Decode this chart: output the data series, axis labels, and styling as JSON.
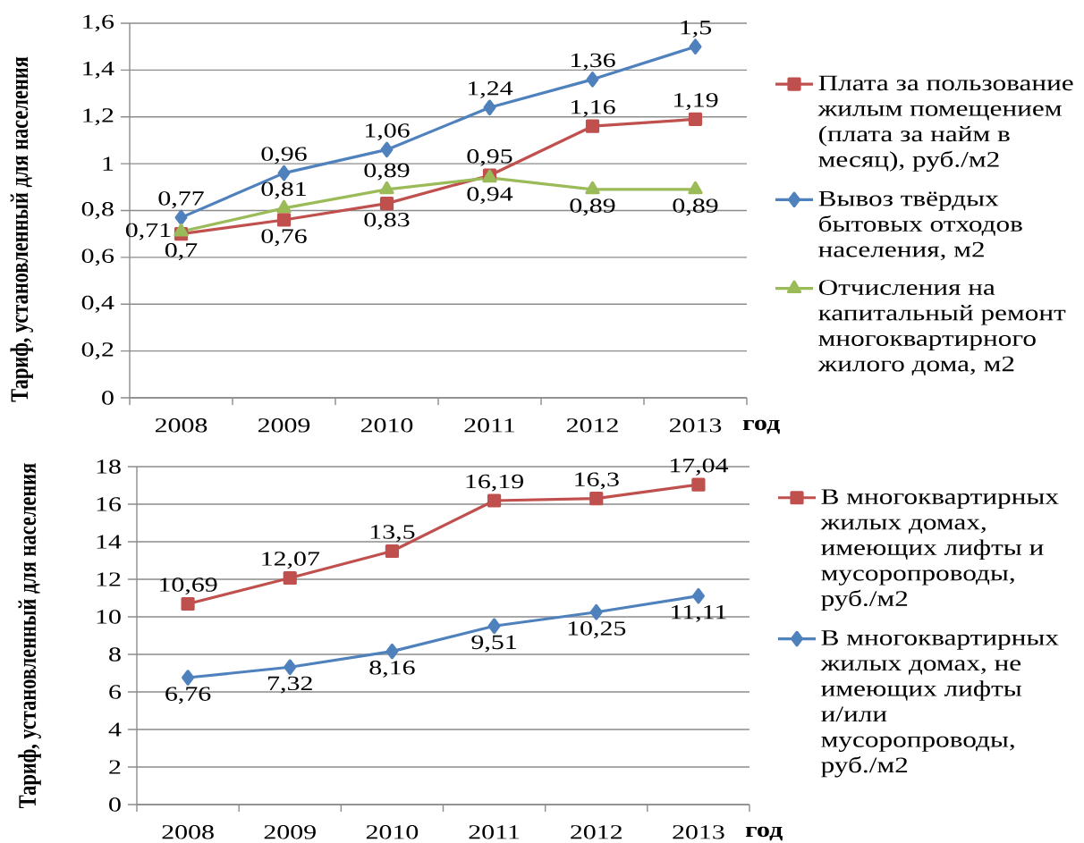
{
  "chart_data": [
    {
      "type": "line",
      "categories": [
        "2008",
        "2009",
        "2010",
        "2011",
        "2012",
        "2013"
      ],
      "xlabel": "год",
      "ylabel": "Тариф, установленный для населения",
      "ylim": [
        0,
        1.6
      ],
      "yticks": [
        0,
        {
          "value": 0.2,
          "label": "0,2"
        },
        {
          "value": 0.4,
          "label": "0,4"
        },
        {
          "value": 0.6,
          "label": "0,6"
        },
        {
          "value": 0.8,
          "label": "0,8"
        },
        1,
        {
          "value": 1.2,
          "label": "1,2"
        },
        {
          "value": 1.4,
          "label": "1,4"
        },
        {
          "value": 1.6,
          "label": "1,6"
        }
      ],
      "grid": "y",
      "legend": "right",
      "series": [
        {
          "name": "Плата за пользование жилым помещением (плата за найм в месяц), руб./м2",
          "color": "#c0504d",
          "marker": "square",
          "values": [
            0.7,
            0.76,
            0.83,
            0.95,
            1.16,
            1.19
          ],
          "value_labels": [
            "0,7",
            "0,76",
            "0,83",
            "0,95",
            "1,16",
            "1,19"
          ]
        },
        {
          "name": "Вывоз твёрдых бытовых отходов населения, м2",
          "color": "#4f81bd",
          "marker": "diamond",
          "values": [
            0.77,
            0.96,
            1.06,
            1.24,
            1.36,
            1.5
          ],
          "value_labels": [
            "0,77",
            "0,96",
            "1,06",
            "1,24",
            "1,36",
            "1,5"
          ]
        },
        {
          "name": "Отчисления на капитальный ремонт многоквартирного жилого дома, м2",
          "color": "#9bbb59",
          "marker": "triangle",
          "values": [
            0.71,
            0.81,
            0.89,
            0.94,
            0.89,
            0.89
          ],
          "value_labels": [
            "0,71",
            "0,81",
            "0,89",
            "0,94",
            "0,89",
            "0,89"
          ]
        }
      ]
    },
    {
      "type": "line",
      "categories": [
        "2008",
        "2009",
        "2010",
        "2011",
        "2012",
        "2013"
      ],
      "xlabel": "год",
      "ylabel": "Тариф, установленный для населения",
      "ylim": [
        0,
        18
      ],
      "yticks": [
        0,
        2,
        4,
        6,
        8,
        10,
        12,
        14,
        16,
        18
      ],
      "grid": "y",
      "legend": "right",
      "series": [
        {
          "name": "В многоквартирных жилых домах, имеющих лифты и мусоропроводы, руб./м2",
          "color": "#c0504d",
          "marker": "square",
          "values": [
            10.69,
            12.07,
            13.5,
            16.19,
            16.3,
            17.04
          ],
          "value_labels": [
            "10,69",
            "12,07",
            "13,5",
            "16,19",
            "16,3",
            "17,04"
          ]
        },
        {
          "name": "В многоквартирных жилых домах, не имеющих лифты и/или мусоропроводы, руб./м2",
          "color": "#4f81bd",
          "marker": "diamond",
          "values": [
            6.76,
            7.32,
            8.16,
            9.51,
            10.25,
            11.11
          ],
          "value_labels": [
            "6,76",
            "7,32",
            "8,16",
            "9,51",
            "10,25",
            "11,11"
          ]
        }
      ]
    }
  ]
}
